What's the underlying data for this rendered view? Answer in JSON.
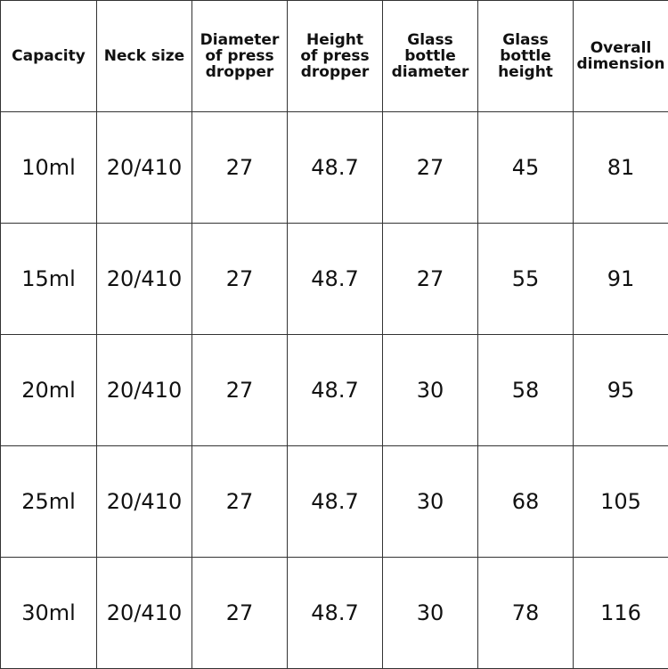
{
  "table": {
    "headers": [
      "Capacity",
      "Neck size",
      "Diameter\nof press\ndropper",
      "Height\nof press\ndropper",
      "Glass\nbottle\ndiameter",
      "Glass\nbottle\nheight",
      "Overall\ndimension"
    ],
    "rows": [
      [
        "10ml",
        "20/410",
        "27",
        "48.7",
        "27",
        "45",
        "81"
      ],
      [
        "15ml",
        "20/410",
        "27",
        "48.7",
        "27",
        "55",
        "91"
      ],
      [
        "20ml",
        "20/410",
        "27",
        "48.7",
        "30",
        "58",
        "95"
      ],
      [
        "25ml",
        "20/410",
        "27",
        "48.7",
        "30",
        "68",
        "105"
      ],
      [
        "30ml",
        "20/410",
        "27",
        "48.7",
        "30",
        "78",
        "116"
      ]
    ]
  }
}
